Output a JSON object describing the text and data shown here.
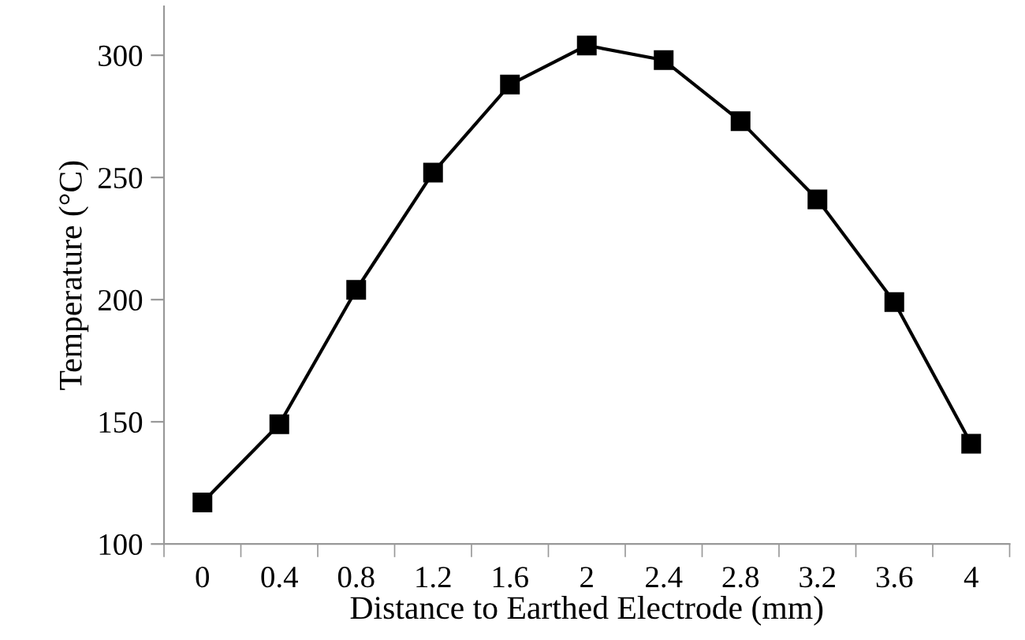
{
  "chart_data": {
    "type": "line",
    "xlabel": "Distance to Earthed Electrode (mm)",
    "ylabel": "Temperature (°C)",
    "categories": [
      "0",
      "0.4",
      "0.8",
      "1.2",
      "1.6",
      "2",
      "2.4",
      "2.8",
      "3.2",
      "3.6",
      "4"
    ],
    "series": [
      {
        "color": "#000000",
        "values": [
          117,
          149,
          204,
          252,
          288,
          304,
          298,
          273,
          241,
          199,
          141
        ]
      }
    ],
    "ylim": [
      100,
      320
    ],
    "yticks": [
      100,
      150,
      200,
      250,
      300
    ],
    "marker": "square",
    "line_style": "solid",
    "grid": false
  }
}
